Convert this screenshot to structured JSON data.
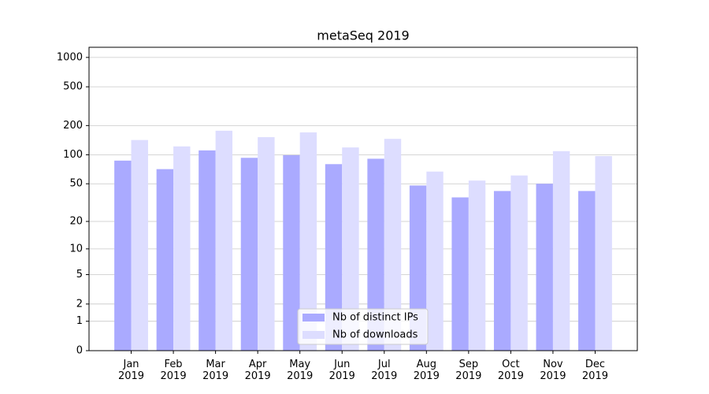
{
  "chart_data": {
    "type": "bar",
    "title": "metaSeq 2019",
    "categories": [
      "Jan 2019",
      "Feb 2019",
      "Mar 2019",
      "Apr 2019",
      "May 2019",
      "Jun 2019",
      "Jul 2019",
      "Aug 2019",
      "Sep 2019",
      "Oct 2019",
      "Nov 2019",
      "Dec 2019"
    ],
    "series": [
      {
        "name": "Nb of distinct IPs",
        "color": "#aaaaff",
        "values": [
          87,
          71,
          111,
          93,
          99,
          80,
          91,
          48,
          36,
          42,
          50,
          42
        ]
      },
      {
        "name": "Nb of downloads",
        "color": "#ddddff",
        "values": [
          142,
          122,
          177,
          152,
          170,
          119,
          146,
          67,
          54,
          61,
          109,
          97
        ]
      }
    ],
    "y_scale": "log1p",
    "ylim": [
      0,
      1270
    ],
    "yticks": [
      0,
      1,
      2,
      5,
      10,
      20,
      50,
      100,
      200,
      500,
      1000
    ],
    "grid": true,
    "legend": "lower center"
  }
}
